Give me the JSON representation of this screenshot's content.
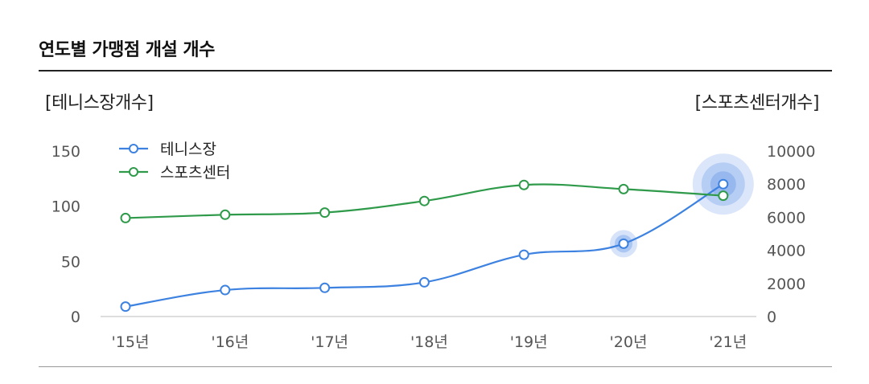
{
  "title": "연도별 가맹점 개설 개수",
  "chart_data": {
    "type": "line",
    "categories": [
      "'15년",
      "'16년",
      "'17년",
      "'18년",
      "'19년",
      "'20년",
      "'21년"
    ],
    "y_left": {
      "label": "[테니스장개수]",
      "ticks": [
        "150",
        "100",
        "50",
        "0"
      ],
      "ylim": [
        0,
        150
      ]
    },
    "y_right": {
      "label": "[스포츠센터개수]",
      "ticks": [
        "10000",
        "8000",
        "6000",
        "4000",
        "2000",
        "0"
      ],
      "ylim": [
        0,
        10000
      ]
    },
    "series": [
      {
        "name": "테니스장",
        "axis": "left",
        "color": "#3d82e0",
        "values": [
          9,
          24,
          26,
          31,
          56,
          66,
          120
        ]
      },
      {
        "name": "스포츠센터",
        "axis": "right",
        "color": "#2e9a4a",
        "values": [
          5950,
          6150,
          6280,
          6980,
          7950,
          7700,
          7300
        ]
      }
    ],
    "highlights": [
      {
        "series": "테니스장",
        "category": "'20년",
        "size": "small"
      },
      {
        "series": "테니스장",
        "category": "'21년",
        "size": "large"
      }
    ],
    "grid": false,
    "legend": "top-left"
  }
}
